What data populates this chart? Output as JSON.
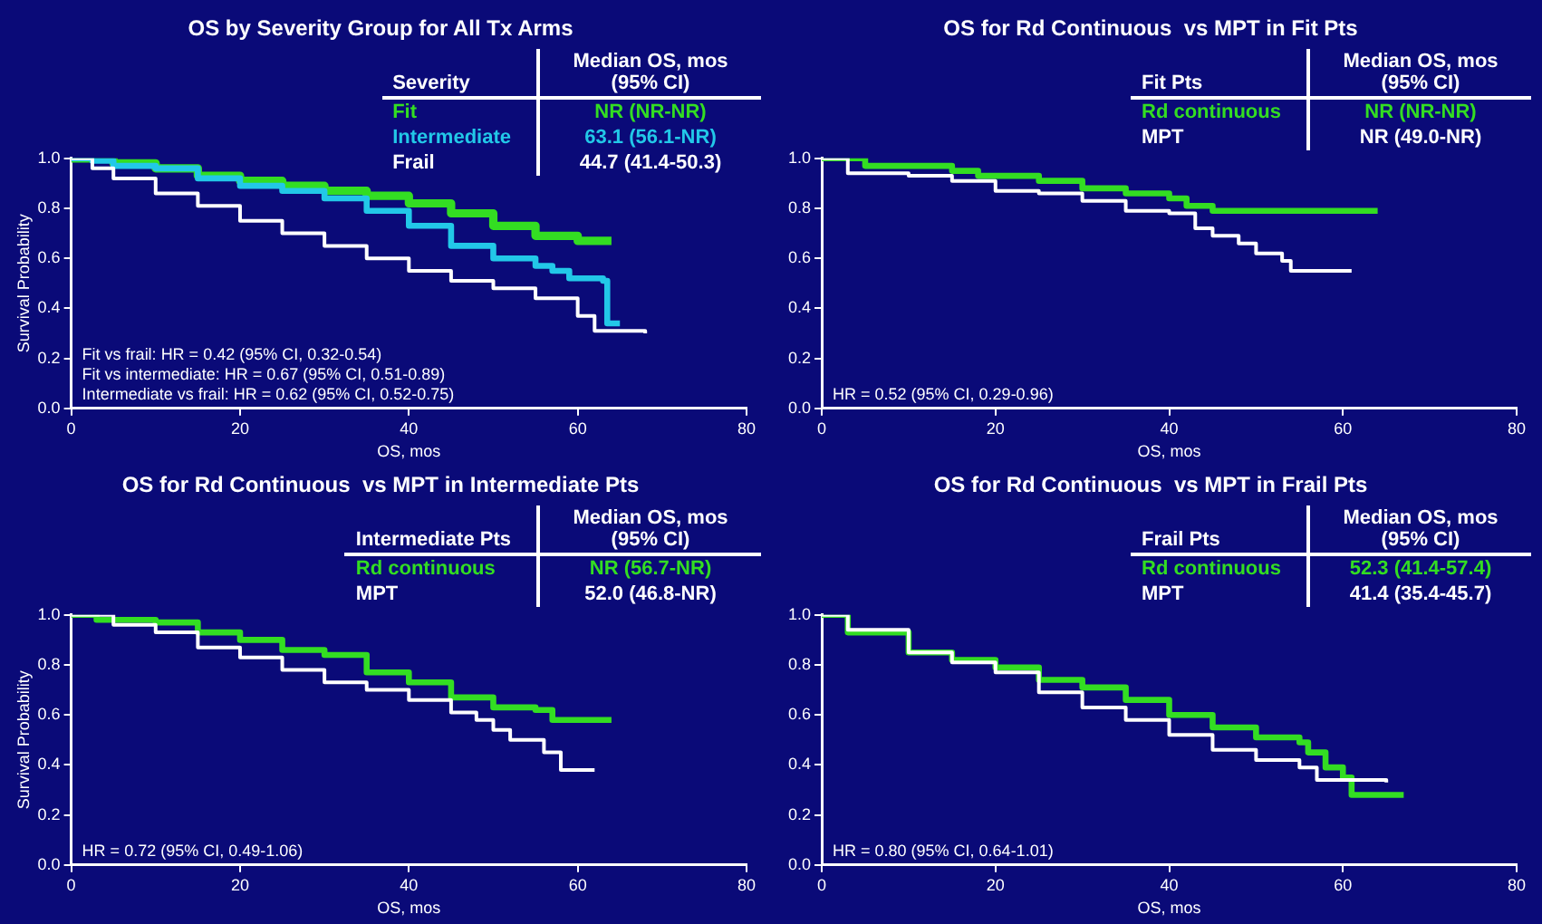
{
  "chart_data": [
    {
      "type": "step",
      "title": "OS by Severity Group for All Tx Arms",
      "xlabel": "OS, mos",
      "ylabel": "Survival Probability",
      "legend": "top right",
      "legend_title": "Severity",
      "xlim": [
        0,
        80
      ],
      "ylim": [
        0,
        1
      ],
      "xticks": [
        0,
        20,
        40,
        60,
        80
      ],
      "yticks": [
        {
          "value": 0,
          "label": "0.0"
        },
        {
          "value": 0.2,
          "label": "0.2"
        },
        {
          "value": 0.4,
          "label": "0.4"
        },
        {
          "value": 0.6,
          "label": "0.6"
        },
        {
          "value": 0.8,
          "label": "0.8"
        },
        {
          "value": 1,
          "label": "1.0"
        }
      ],
      "annotations": [
        "Median OS, mos (95% CI)",
        "NR (NR-NR)",
        "63.1 (56.1-NR)",
        "44.7 (41.4-50.3)",
        "Fit vs frail: HR = 0.42 (95% CI, 0.32-0.54)",
        "Fit vs intermediate: HR = 0.67 (95% CI, 0.51-0.89)",
        "Intermediate vs frail: HR = 0.62 (95% CI, 0.52-0.75)"
      ],
      "series": [
        {
          "name": "Fit",
          "color": "#33dd22",
          "x": [
            0,
            5,
            10,
            15,
            20,
            25,
            30,
            35,
            40,
            45,
            50,
            55,
            60,
            64
          ],
          "values": [
            1,
            0.98,
            0.96,
            0.93,
            0.91,
            0.89,
            0.87,
            0.85,
            0.82,
            0.78,
            0.73,
            0.69,
            0.67,
            0.67
          ]
        },
        {
          "name": "Intermediate",
          "color": "#22c8e8",
          "x": [
            0,
            2.5,
            5,
            10,
            15,
            20,
            25,
            30,
            35,
            40,
            45,
            50,
            55,
            57,
            59,
            63,
            63.5,
            65
          ],
          "values": [
            1,
            0.99,
            0.97,
            0.96,
            0.92,
            0.89,
            0.87,
            0.84,
            0.79,
            0.73,
            0.65,
            0.6,
            0.57,
            0.55,
            0.52,
            0.51,
            0.34,
            0.34
          ]
        },
        {
          "name": "Frail",
          "color": "#ffffff",
          "x": [
            0,
            2.5,
            5,
            10,
            15,
            20,
            25,
            30,
            35,
            40,
            45,
            50,
            55,
            60,
            62,
            68
          ],
          "values": [
            1,
            0.96,
            0.92,
            0.86,
            0.81,
            0.75,
            0.7,
            0.65,
            0.6,
            0.55,
            0.51,
            0.48,
            0.44,
            0.37,
            0.31,
            0.3
          ]
        }
      ]
    },
    {
      "type": "step",
      "title": "OS for Rd Continuous  vs MPT in Fit Pts",
      "xlabel": "OS, mos",
      "legend": "top right",
      "legend_title": "Fit Pts",
      "xlim": [
        0,
        80
      ],
      "ylim": [
        0,
        1
      ],
      "xticks": [
        0,
        20,
        40,
        60,
        80
      ],
      "yticks": [
        {
          "value": 0,
          "label": "0.0"
        },
        {
          "value": 0.2,
          "label": "0.2"
        },
        {
          "value": 0.4,
          "label": "0.4"
        },
        {
          "value": 0.6,
          "label": "0.6"
        },
        {
          "value": 0.8,
          "label": "0.8"
        },
        {
          "value": 1,
          "label": "1.0"
        }
      ],
      "annotations": [
        "Median OS, mos (95% CI)",
        "NR (NR-NR)",
        "NR (49.0-NR)",
        "HR = 0.52 (95% CI, 0.29-0.96)"
      ],
      "series": [
        {
          "name": "Rd continuous",
          "color": "#33dd22",
          "x": [
            0,
            5,
            10,
            15,
            18,
            25,
            30,
            35,
            40,
            42,
            45,
            60,
            64
          ],
          "values": [
            1,
            0.97,
            0.97,
            0.95,
            0.93,
            0.91,
            0.88,
            0.86,
            0.84,
            0.81,
            0.79,
            0.79,
            0.79
          ]
        },
        {
          "name": "MPT",
          "color": "#ffffff",
          "x": [
            0,
            3,
            10,
            15,
            20,
            25,
            30,
            35,
            40,
            43,
            45,
            48,
            50,
            53,
            54,
            61
          ],
          "values": [
            1,
            0.94,
            0.93,
            0.91,
            0.87,
            0.86,
            0.83,
            0.79,
            0.78,
            0.72,
            0.69,
            0.66,
            0.62,
            0.59,
            0.55,
            0.55
          ]
        }
      ]
    },
    {
      "type": "step",
      "title": "OS for Rd Continuous  vs MPT in Intermediate Pts",
      "xlabel": "OS, mos",
      "ylabel": "Survival Probability",
      "legend": "top right",
      "legend_title": "Intermediate Pts",
      "xlim": [
        0,
        80
      ],
      "ylim": [
        0,
        1
      ],
      "xticks": [
        0,
        20,
        40,
        60,
        80
      ],
      "yticks": [
        {
          "value": 0,
          "label": "0.0"
        },
        {
          "value": 0.2,
          "label": "0.2"
        },
        {
          "value": 0.4,
          "label": "0.4"
        },
        {
          "value": 0.6,
          "label": "0.6"
        },
        {
          "value": 0.8,
          "label": "0.8"
        },
        {
          "value": 1,
          "label": "1.0"
        }
      ],
      "annotations": [
        "Median OS, mos (95% CI)",
        "NR (56.7-NR)",
        "52.0 (46.8-NR)",
        "HR = 0.72 (95% CI, 0.49-1.06)"
      ],
      "series": [
        {
          "name": "Rd continuous",
          "color": "#33dd22",
          "x": [
            0,
            3,
            10,
            15,
            20,
            25,
            30,
            35,
            40,
            45,
            50,
            55,
            57,
            64
          ],
          "values": [
            1,
            0.98,
            0.97,
            0.93,
            0.9,
            0.86,
            0.84,
            0.77,
            0.73,
            0.67,
            0.63,
            0.62,
            0.58,
            0.58
          ]
        },
        {
          "name": "MPT",
          "color": "#ffffff",
          "x": [
            0,
            5,
            10,
            15,
            20,
            25,
            30,
            35,
            40,
            45,
            48,
            50,
            52,
            56,
            58,
            62
          ],
          "values": [
            1,
            0.96,
            0.93,
            0.87,
            0.83,
            0.78,
            0.73,
            0.7,
            0.66,
            0.61,
            0.58,
            0.54,
            0.5,
            0.45,
            0.38,
            0.38
          ]
        }
      ]
    },
    {
      "type": "step",
      "title": "OS for Rd Continuous  vs MPT in Frail Pts",
      "xlabel": "OS, mos",
      "legend": "top right",
      "legend_title": "Frail Pts",
      "xlim": [
        0,
        80
      ],
      "ylim": [
        0,
        1
      ],
      "xticks": [
        0,
        20,
        40,
        60,
        80
      ],
      "yticks": [
        {
          "value": 0,
          "label": "0.0"
        },
        {
          "value": 0.2,
          "label": "0.2"
        },
        {
          "value": 0.4,
          "label": "0.4"
        },
        {
          "value": 0.6,
          "label": "0.6"
        },
        {
          "value": 0.8,
          "label": "0.8"
        },
        {
          "value": 1,
          "label": "1.0"
        }
      ],
      "annotations": [
        "Median OS, mos (95% CI)",
        "52.3 (41.4-57.4)",
        "41.4 (35.4-45.7)",
        "HR = 0.80 (95% CI, 0.64-1.01)"
      ],
      "series": [
        {
          "name": "Rd continuous",
          "color": "#33dd22",
          "x": [
            0,
            3,
            10,
            15,
            20,
            25,
            30,
            35,
            40,
            45,
            50,
            55,
            56,
            58,
            60,
            61,
            67
          ],
          "values": [
            1,
            0.93,
            0.85,
            0.82,
            0.79,
            0.74,
            0.71,
            0.66,
            0.6,
            0.55,
            0.51,
            0.49,
            0.45,
            0.39,
            0.35,
            0.28,
            0.28
          ]
        },
        {
          "name": "MPT",
          "color": "#ffffff",
          "x": [
            0,
            3,
            10,
            15,
            20,
            25,
            30,
            35,
            40,
            45,
            50,
            55,
            57,
            65
          ],
          "values": [
            1,
            0.94,
            0.85,
            0.81,
            0.77,
            0.69,
            0.63,
            0.58,
            0.52,
            0.46,
            0.42,
            0.39,
            0.34,
            0.33
          ]
        }
      ]
    }
  ]
}
